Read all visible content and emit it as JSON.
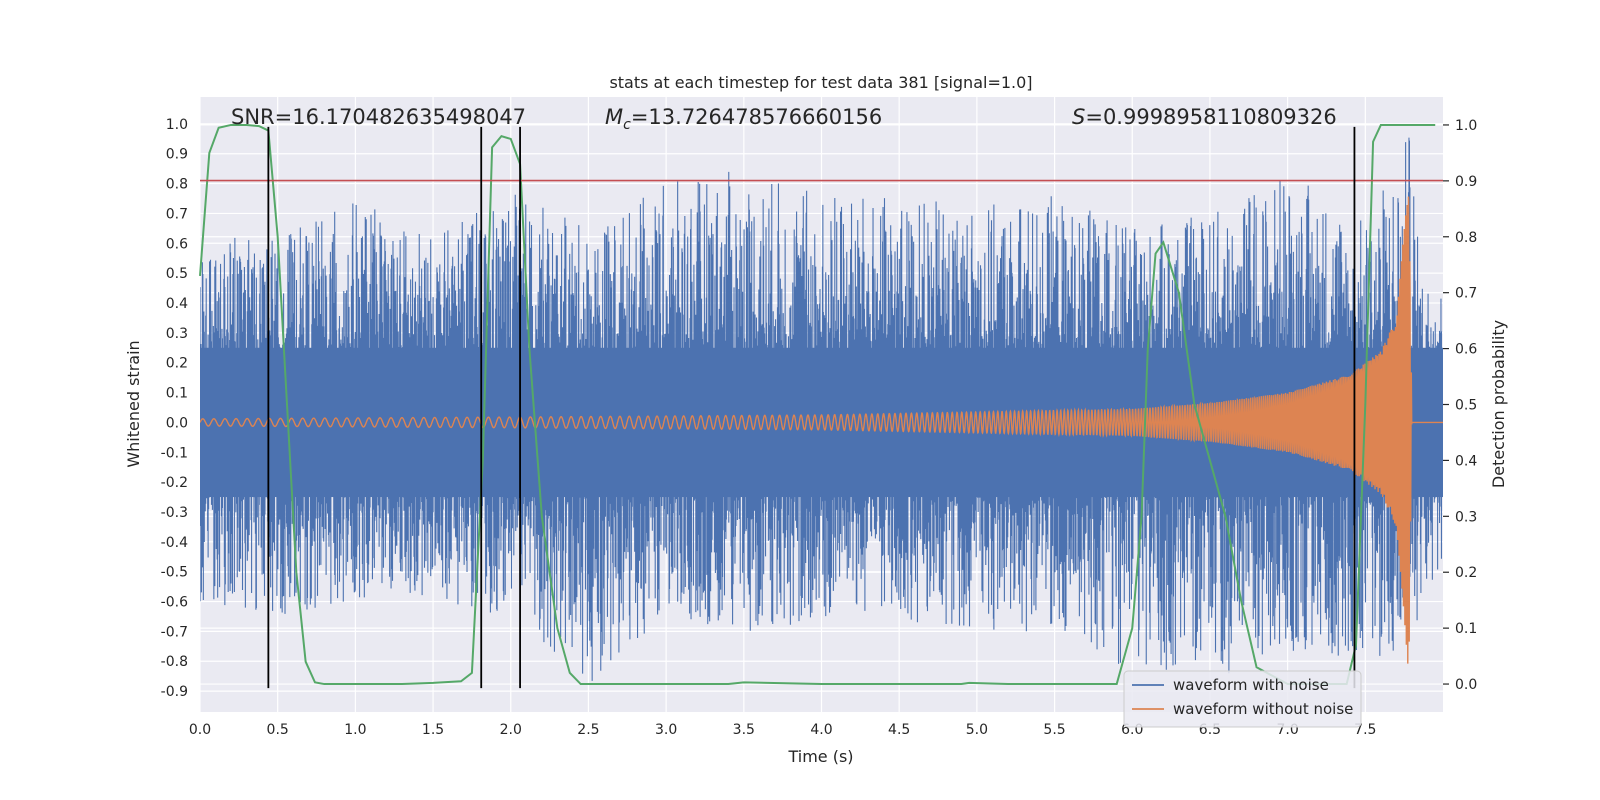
{
  "chart_data": {
    "type": "line",
    "title": "stats at each timestep for test data 381 [signal=1.0]",
    "xlabel": "Time (s)",
    "ylabel": "Whitened strain",
    "y2label": "Detection probability",
    "xlim": [
      0.0,
      8.0
    ],
    "ylim": [
      -0.97,
      1.09
    ],
    "y2lim": [
      -0.05,
      1.05
    ],
    "grid": true,
    "legend_position": "lower-right",
    "x_ticks": [
      "0.0",
      "0.5",
      "1.0",
      "1.5",
      "2.0",
      "2.5",
      "3.0",
      "3.5",
      "4.0",
      "4.5",
      "5.0",
      "5.5",
      "6.0",
      "6.5",
      "7.0",
      "7.5"
    ],
    "y_ticks": [
      "1.0",
      "0.9",
      "0.8",
      "0.7",
      "0.6",
      "0.5",
      "0.4",
      "0.3",
      "0.2",
      "0.1",
      "0.0",
      "-0.1",
      "-0.2",
      "-0.3",
      "-0.4",
      "-0.5",
      "-0.6",
      "-0.7",
      "-0.8",
      "-0.9"
    ],
    "y2_ticks": [
      "1.0",
      "0.9",
      "0.8",
      "0.7",
      "0.6",
      "0.5",
      "0.4",
      "0.3",
      "0.2",
      "0.1",
      "0.0"
    ],
    "annotations": {
      "snr": "SNR=16.170482635498047",
      "mc_symbol": "M",
      "mc_subscript": "c",
      "mc_value": "=13.726478576660156",
      "s_symbol": "S",
      "s_value": "=0.9998958110809326"
    },
    "series": [
      {
        "name": "waveform with noise",
        "color": "#4c72b0",
        "envelope_x": [
          0.0,
          0.5,
          1.0,
          1.5,
          2.0,
          2.5,
          3.0,
          3.5,
          4.0,
          4.5,
          5.0,
          5.5,
          6.0,
          6.5,
          7.0,
          7.5,
          7.8,
          7.85,
          8.0
        ],
        "envelope_max": [
          0.62,
          0.62,
          0.75,
          0.62,
          0.78,
          0.65,
          0.8,
          0.85,
          0.78,
          0.75,
          0.73,
          0.76,
          0.65,
          0.7,
          0.85,
          0.68,
          1.0,
          0.5,
          0.45
        ],
        "envelope_min": [
          -0.6,
          -0.65,
          -0.6,
          -0.6,
          -0.65,
          -0.88,
          -0.65,
          -0.7,
          -0.68,
          -0.66,
          -0.7,
          -0.7,
          -0.85,
          -0.87,
          -0.8,
          -0.78,
          -0.82,
          -0.6,
          -0.55
        ]
      },
      {
        "name": "waveform without noise",
        "color": "#dd8452",
        "amplitude_x": [
          0.0,
          2.0,
          4.0,
          5.0,
          6.0,
          6.5,
          7.0,
          7.4,
          7.6,
          7.7,
          7.78,
          7.8
        ],
        "amplitude": [
          0.012,
          0.018,
          0.025,
          0.035,
          0.045,
          0.065,
          0.1,
          0.16,
          0.24,
          0.35,
          0.85,
          0.0
        ],
        "frequency_start": 14,
        "frequency_end": 110,
        "merger_time": 7.8
      },
      {
        "name": "",
        "axis": "right",
        "color": "#55a868",
        "x": [
          0.0,
          0.06,
          0.12,
          0.2,
          0.3,
          0.38,
          0.44,
          0.5,
          0.56,
          0.62,
          0.68,
          0.74,
          0.8,
          1.0,
          1.3,
          1.5,
          1.68,
          1.75,
          1.82,
          1.88,
          1.94,
          2.0,
          2.06,
          2.12,
          2.2,
          2.3,
          2.38,
          2.45,
          2.6,
          3.0,
          3.4,
          3.5,
          4.0,
          4.5,
          4.9,
          4.95,
          5.2,
          5.6,
          5.9,
          6.0,
          6.06,
          6.1,
          6.15,
          6.2,
          6.3,
          6.4,
          6.5,
          6.6,
          6.7,
          6.8,
          7.0,
          7.2,
          7.38,
          7.44,
          7.5,
          7.55,
          7.6,
          7.8,
          7.95
        ],
        "y": [
          0.73,
          0.95,
          0.995,
          1.0,
          1.0,
          0.998,
          0.99,
          0.8,
          0.5,
          0.2,
          0.04,
          0.003,
          0.0,
          0.0,
          0.0,
          0.002,
          0.005,
          0.02,
          0.4,
          0.96,
          0.98,
          0.975,
          0.93,
          0.6,
          0.3,
          0.1,
          0.02,
          0.0,
          0.0,
          0.0,
          0.0,
          0.003,
          0.0,
          0.0,
          0.0,
          0.002,
          0.0,
          0.0,
          0.0,
          0.1,
          0.3,
          0.6,
          0.77,
          0.79,
          0.7,
          0.5,
          0.4,
          0.3,
          0.15,
          0.03,
          0.0,
          0.0,
          0.0,
          0.07,
          0.5,
          0.97,
          1.0,
          1.0,
          1.0
        ]
      }
    ],
    "threshold_line": {
      "y": 0.81,
      "color": "#c44e52"
    },
    "vertical_lines": [
      0.44,
      1.81,
      2.06,
      7.43
    ],
    "vertical_line_range": [
      -0.89,
      0.99
    ],
    "legend_entries": [
      {
        "label": "waveform with noise",
        "color": "#4c72b0"
      },
      {
        "label": "waveform without noise",
        "color": "#dd8452"
      }
    ]
  }
}
